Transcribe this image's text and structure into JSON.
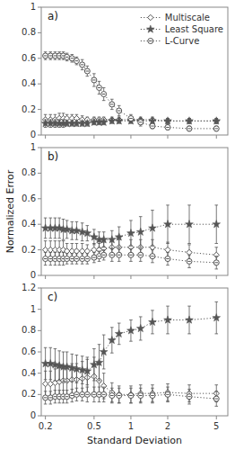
{
  "chart_data": [
    {
      "type": "line",
      "title": "a)",
      "log": "x",
      "grid": false,
      "legend": "upper right",
      "tick_labels": "y",
      "x": [
        0.2,
        0.22,
        0.24,
        0.26,
        0.28,
        0.3,
        0.33,
        0.36,
        0.4,
        0.44,
        0.5,
        0.55,
        0.6,
        0.7,
        0.8,
        1.0,
        1.2,
        1.5,
        2.0,
        3.0,
        5.0
      ],
      "xlim": [
        0.185,
        6.2
      ],
      "xticks": [
        0.2,
        0.5,
        1,
        2,
        5
      ],
      "ylim": [
        0,
        1
      ],
      "yticks": [
        0,
        0.2,
        0.4,
        0.6,
        0.8,
        1
      ],
      "series": [
        {
          "name": "Multiscale",
          "color": "#555555",
          "marker": "diamond",
          "line_style": "dotted",
          "values": [
            0.12,
            0.12,
            0.12,
            0.13,
            0.13,
            0.13,
            0.13,
            0.13,
            0.12,
            0.12,
            0.12,
            0.12,
            0.12,
            0.12,
            0.12,
            0.12,
            0.12,
            0.12,
            0.11,
            0.11,
            0.11
          ],
          "errors": [
            0.04,
            0.04,
            0.04,
            0.04,
            0.04,
            0.03,
            0.03,
            0.03,
            0.03,
            0.02,
            0.02,
            0.02,
            0.02,
            0.02,
            0.02,
            0.02,
            0.02,
            0.02,
            0.02,
            0.02,
            0.02
          ]
        },
        {
          "name": "Least Square",
          "color": "#555555",
          "marker": "star",
          "line_style": "dotted",
          "values": [
            0.09,
            0.09,
            0.09,
            0.09,
            0.09,
            0.09,
            0.09,
            0.09,
            0.09,
            0.09,
            0.1,
            0.1,
            0.1,
            0.11,
            0.11,
            0.11,
            0.11,
            0.11,
            0.11,
            0.11,
            0.11
          ],
          "errors": [
            0.03,
            0.03,
            0.03,
            0.03,
            0.03,
            0.02,
            0.02,
            0.02,
            0.02,
            0.02,
            0.02,
            0.02,
            0.02,
            0.02,
            0.02,
            0.02,
            0.02,
            0.02,
            0.02,
            0.02,
            0.02
          ]
        },
        {
          "name": "L-Curve",
          "color": "#555555",
          "marker": "theta",
          "line_style": "dotted",
          "values": [
            0.62,
            0.62,
            0.62,
            0.62,
            0.62,
            0.61,
            0.6,
            0.58,
            0.55,
            0.5,
            0.43,
            0.37,
            0.32,
            0.24,
            0.19,
            0.13,
            0.1,
            0.07,
            0.06,
            0.05,
            0.05
          ],
          "errors": [
            0.03,
            0.03,
            0.03,
            0.03,
            0.03,
            0.03,
            0.03,
            0.03,
            0.04,
            0.04,
            0.05,
            0.05,
            0.05,
            0.04,
            0.04,
            0.03,
            0.03,
            0.02,
            0.02,
            0.02,
            0.02
          ]
        }
      ]
    },
    {
      "type": "line",
      "title": "b)",
      "log": "x",
      "grid": false,
      "tick_labels": "y",
      "ylabel": "Normalized Error",
      "x": [
        0.2,
        0.22,
        0.24,
        0.26,
        0.28,
        0.3,
        0.33,
        0.36,
        0.4,
        0.44,
        0.5,
        0.55,
        0.6,
        0.7,
        0.8,
        1.0,
        1.2,
        1.5,
        2.0,
        3.0,
        5.0
      ],
      "xlim": [
        0.185,
        6.2
      ],
      "xticks": [
        0.2,
        0.5,
        1,
        2,
        5
      ],
      "ylim": [
        0,
        1
      ],
      "yticks": [
        0,
        0.2,
        0.4,
        0.6,
        0.8,
        1
      ],
      "series": [
        {
          "color": "#555555",
          "marker": "diamond",
          "line_style": "dotted",
          "values": [
            0.2,
            0.2,
            0.2,
            0.2,
            0.2,
            0.19,
            0.19,
            0.19,
            0.19,
            0.19,
            0.2,
            0.2,
            0.21,
            0.22,
            0.22,
            0.22,
            0.22,
            0.22,
            0.2,
            0.18,
            0.16
          ],
          "errors": [
            0.07,
            0.07,
            0.07,
            0.07,
            0.07,
            0.06,
            0.06,
            0.06,
            0.06,
            0.05,
            0.05,
            0.05,
            0.05,
            0.05,
            0.06,
            0.06,
            0.06,
            0.06,
            0.06,
            0.06,
            0.06
          ]
        },
        {
          "color": "#555555",
          "marker": "star",
          "line_style": "dotted",
          "values": [
            0.37,
            0.37,
            0.37,
            0.37,
            0.36,
            0.36,
            0.35,
            0.35,
            0.34,
            0.33,
            0.3,
            0.28,
            0.28,
            0.28,
            0.3,
            0.33,
            0.34,
            0.37,
            0.4,
            0.4,
            0.4
          ],
          "errors": [
            0.08,
            0.08,
            0.08,
            0.08,
            0.08,
            0.07,
            0.07,
            0.07,
            0.07,
            0.06,
            0.06,
            0.06,
            0.06,
            0.07,
            0.08,
            0.1,
            0.12,
            0.14,
            0.15,
            0.15,
            0.15
          ]
        },
        {
          "color": "#555555",
          "marker": "theta",
          "line_style": "dotted",
          "values": [
            0.13,
            0.13,
            0.13,
            0.13,
            0.13,
            0.13,
            0.13,
            0.13,
            0.13,
            0.13,
            0.14,
            0.15,
            0.16,
            0.16,
            0.16,
            0.16,
            0.16,
            0.15,
            0.13,
            0.11,
            0.1
          ],
          "errors": [
            0.05,
            0.05,
            0.05,
            0.05,
            0.05,
            0.04,
            0.04,
            0.04,
            0.04,
            0.04,
            0.04,
            0.04,
            0.04,
            0.05,
            0.05,
            0.05,
            0.05,
            0.05,
            0.05,
            0.05,
            0.05
          ]
        }
      ]
    },
    {
      "type": "line",
      "title": "c)",
      "log": "x",
      "grid": false,
      "xlabel": "Standard Deviation",
      "x": [
        0.2,
        0.22,
        0.24,
        0.26,
        0.28,
        0.3,
        0.33,
        0.36,
        0.4,
        0.44,
        0.5,
        0.55,
        0.6,
        0.7,
        0.8,
        1.0,
        1.2,
        1.5,
        2.0,
        3.0,
        5.0
      ],
      "xlim": [
        0.185,
        6.2
      ],
      "xticks": [
        0.2,
        0.5,
        1,
        2,
        5
      ],
      "ylim": [
        0,
        1.2
      ],
      "yticks": [
        0,
        0.2,
        0.4,
        0.6,
        0.8,
        1,
        1.2
      ],
      "series": [
        {
          "color": "#555555",
          "marker": "diamond",
          "line_style": "dotted",
          "values": [
            0.3,
            0.3,
            0.31,
            0.32,
            0.33,
            0.33,
            0.34,
            0.34,
            0.35,
            0.36,
            0.37,
            0.33,
            0.28,
            0.22,
            0.2,
            0.2,
            0.21,
            0.21,
            0.22,
            0.21,
            0.21
          ],
          "errors": [
            0.12,
            0.12,
            0.13,
            0.13,
            0.14,
            0.14,
            0.15,
            0.15,
            0.16,
            0.17,
            0.18,
            0.15,
            0.12,
            0.09,
            0.08,
            0.08,
            0.08,
            0.08,
            0.08,
            0.08,
            0.08
          ]
        },
        {
          "color": "#555555",
          "marker": "star",
          "line_style": "dotted",
          "values": [
            0.49,
            0.49,
            0.48,
            0.47,
            0.46,
            0.46,
            0.45,
            0.44,
            0.43,
            0.42,
            0.48,
            0.5,
            0.6,
            0.71,
            0.77,
            0.8,
            0.82,
            0.88,
            0.9,
            0.9,
            0.92
          ],
          "errors": [
            0.15,
            0.15,
            0.15,
            0.14,
            0.14,
            0.14,
            0.13,
            0.13,
            0.13,
            0.13,
            0.15,
            0.17,
            0.16,
            0.12,
            0.1,
            0.1,
            0.11,
            0.11,
            0.13,
            0.13,
            0.15
          ]
        },
        {
          "color": "#555555",
          "marker": "theta",
          "line_style": "dotted",
          "values": [
            0.17,
            0.17,
            0.18,
            0.18,
            0.18,
            0.18,
            0.19,
            0.2,
            0.2,
            0.2,
            0.2,
            0.2,
            0.2,
            0.19,
            0.19,
            0.19,
            0.19,
            0.19,
            0.2,
            0.18,
            0.16
          ],
          "errors": [
            0.06,
            0.06,
            0.06,
            0.06,
            0.06,
            0.06,
            0.06,
            0.06,
            0.06,
            0.07,
            0.07,
            0.07,
            0.07,
            0.07,
            0.07,
            0.07,
            0.07,
            0.07,
            0.07,
            0.07,
            0.07
          ]
        }
      ]
    }
  ]
}
